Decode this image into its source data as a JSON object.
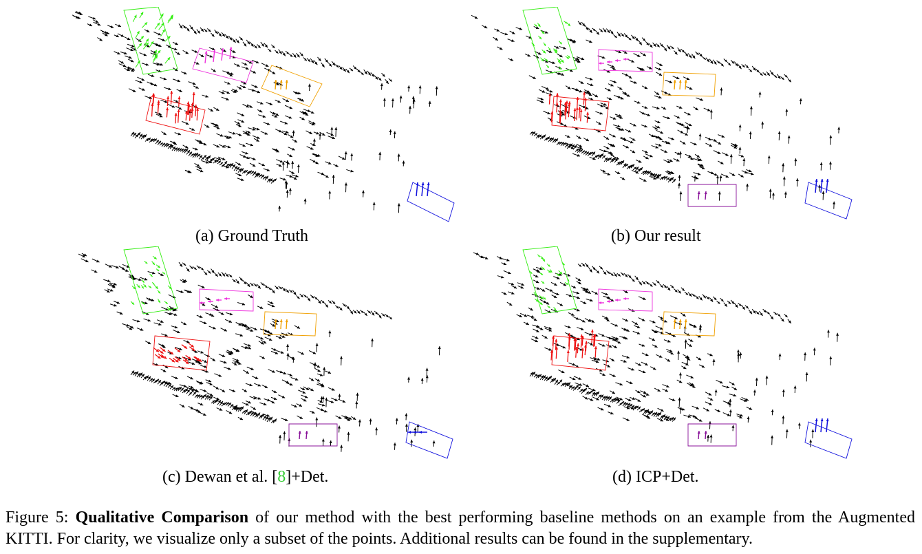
{
  "panels": [
    {
      "id": "a",
      "caption": "(a) Ground Truth"
    },
    {
      "id": "b",
      "caption": "(b) Our result"
    },
    {
      "id": "c",
      "caption_pre": "(c) Dewan et al.  [",
      "caption_ref": "8",
      "caption_post": "]+Det."
    },
    {
      "id": "d",
      "caption": "(d) ICP+Det."
    }
  ],
  "figure_caption": {
    "label": "Figure 5: ",
    "bold": "Qualitative Comparison",
    "rest": " of our method with the best performing baseline methods on an example from the Augmented KITTI. For clarity, we visualize only a subset of the points. Additional results can be found in the supplementary."
  },
  "colors": {
    "background_flow": "#000000",
    "object_green": "#33ee11",
    "object_magenta": "#ee33dd",
    "object_orange": "#f0a000",
    "object_red": "#ee1111",
    "object_blue": "#1111dd",
    "object_purple": "#881199",
    "ref_link": "#33cc33"
  }
}
